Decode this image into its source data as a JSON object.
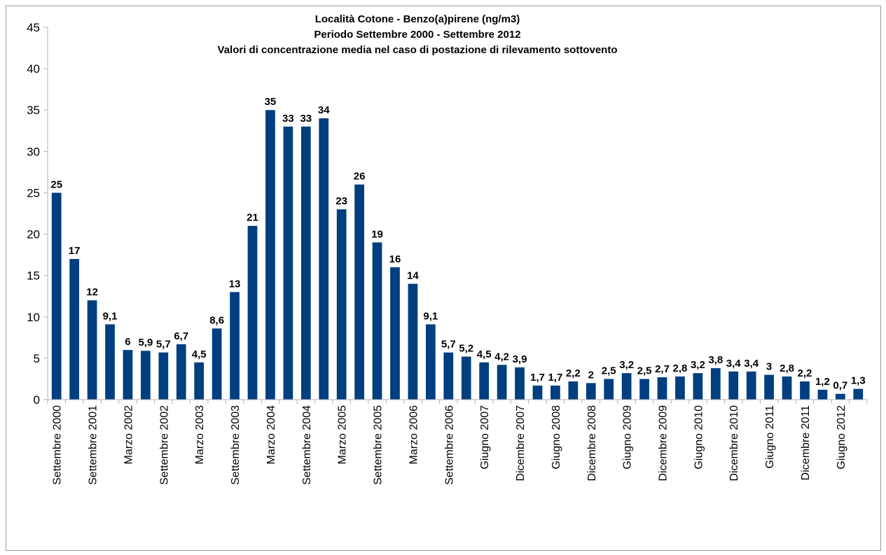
{
  "chart_data": {
    "type": "bar",
    "title": [
      "Località Cotone - Benzo(a)pirene (ng/m3)",
      "Periodo Settembre 2000 - Settembre 2012",
      "Valori di concentrazione media nel caso di postazione di rilevamento sottovento"
    ],
    "xlabel": "",
    "ylabel": "",
    "ylim": [
      0,
      45
    ],
    "yticks": [
      0,
      5,
      10,
      15,
      20,
      25,
      30,
      35,
      40,
      45
    ],
    "grid": false,
    "legend": "none",
    "bar_color": "#003f7f",
    "x_tick_labels": [
      "Settembre 2000",
      "Settembre 2001",
      "Marzo 2002",
      "Settembre 2002",
      "Marzo 2003",
      "Settembre 2003",
      "Marzo 2004",
      "Settembre 2004",
      "Marzo 2005",
      "Settembre 2005",
      "Marzo 2006",
      "Settembre 2006",
      "Giugno 2007",
      "Dicembre 2007",
      "Giugno 2008",
      "Dicembre 2008",
      "Giugno 2009",
      "Dicembre 2009",
      "Giugno 2010",
      "Dicembre 2010",
      "Giugno 2011",
      "Dicembre 2011",
      "Giugno 2012"
    ],
    "values": [
      25,
      17,
      12,
      9.1,
      6,
      5.9,
      5.7,
      6.7,
      4.5,
      8.6,
      13,
      21,
      35,
      33,
      33,
      34,
      23,
      26,
      19,
      16,
      14,
      9.1,
      5.7,
      5.2,
      4.5,
      4.2,
      3.9,
      1.7,
      1.7,
      2.2,
      2,
      2.5,
      3.2,
      2.5,
      2.7,
      2.8,
      3.2,
      3.8,
      3.4,
      3.4,
      3,
      2.8,
      2.2,
      1.2,
      0.7,
      1.3
    ],
    "data_labels": [
      "25",
      "17",
      "12",
      "9,1",
      "6",
      "5,9",
      "5,7",
      "6,7",
      "4,5",
      "8,6",
      "13",
      "21",
      "35",
      "33",
      "33",
      "34",
      "23",
      "26",
      "19",
      "16",
      "14",
      "9,1",
      "5,7",
      "5,2",
      "4,5",
      "4,2",
      "3,9",
      "1,7",
      "1,7",
      "2,2",
      "2",
      "2,5",
      "3,2",
      "2,5",
      "2,7",
      "2,8",
      "3,2",
      "3,8",
      "3,4",
      "3,4",
      "3",
      "2,8",
      "2,2",
      "1,2",
      "0,7",
      "1,3"
    ]
  }
}
